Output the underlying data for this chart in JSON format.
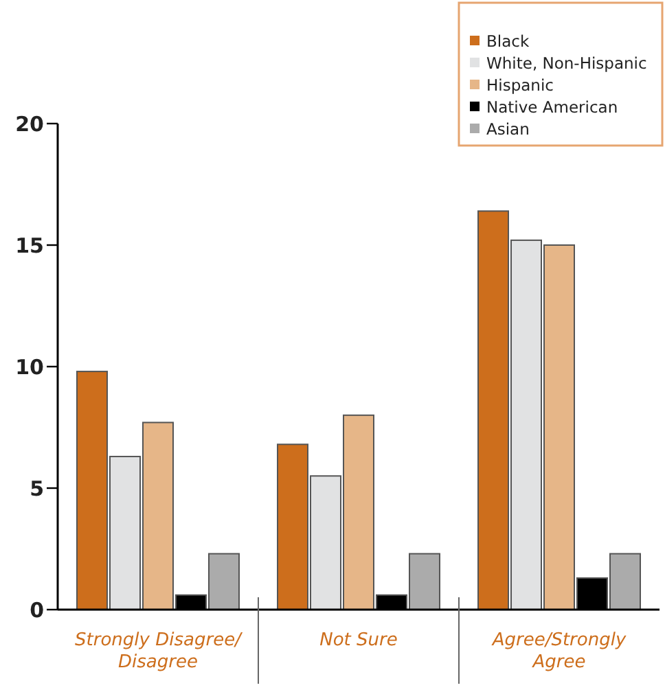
{
  "chart_data": {
    "type": "bar",
    "categories": [
      "Strongly Disagree/ Disagree",
      "Not Sure",
      "Agree/Strongly Agree"
    ],
    "series": [
      {
        "name": "Black",
        "color": "#cd6e1c",
        "values": [
          9.8,
          6.8,
          16.4
        ]
      },
      {
        "name": "White, Non-Hispanic",
        "color": "#e1e2e3",
        "values": [
          6.3,
          5.5,
          15.2
        ]
      },
      {
        "name": "Hispanic",
        "color": "#e6b688",
        "values": [
          7.7,
          8.0,
          15.0
        ]
      },
      {
        "name": "Native American",
        "color": "#000000",
        "values": [
          0.6,
          0.6,
          1.3
        ]
      },
      {
        "name": "Asian",
        "color": "#ababab",
        "values": [
          2.3,
          2.3,
          2.3
        ]
      }
    ],
    "ylim": [
      0,
      20
    ],
    "yticks": [
      0,
      5,
      10,
      15,
      20
    ],
    "grid": false,
    "legend": "top right"
  }
}
